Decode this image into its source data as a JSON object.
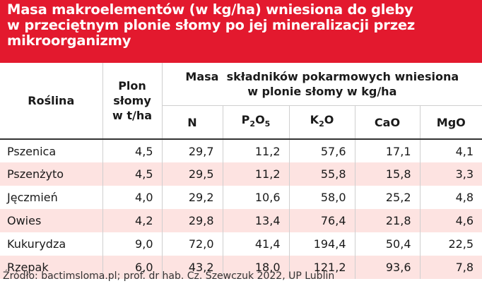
{
  "title_lines": [
    "Masa makroelementów (w kg/ha) wniesiona do gleby",
    "w przeciętnym plonie słomy po jej mineralizacji przez",
    "mikroorganizmy"
  ],
  "headers": {
    "crop": "Roślina",
    "yield_lines": [
      "Plon",
      "słomy",
      "w t/ha"
    ],
    "mass_lines": [
      "Masa  składników pokarmowych wniesiona",
      "w plonie słomy w kg/ha"
    ],
    "n": "N",
    "p2o5": {
      "a": "P",
      "b": "2",
      "c": "O",
      "d": "5"
    },
    "k2o": {
      "a": "K",
      "b": "2",
      "c": "O"
    },
    "cao": "CaO",
    "mgo": "MgO"
  },
  "rows": [
    {
      "crop": "Pszenica",
      "yield": "4,5",
      "n": "29,7",
      "p2o5": "11,2",
      "k2o": "57,6",
      "cao": "17,1",
      "mgo": "4,1"
    },
    {
      "crop": "Pszenżyto",
      "yield": "4,5",
      "n": "29,5",
      "p2o5": "11,2",
      "k2o": "55,8",
      "cao": "15,8",
      "mgo": "3,3"
    },
    {
      "crop": "Jęczmień",
      "yield": "4,0",
      "n": "29,2",
      "p2o5": "10,6",
      "k2o": "58,0",
      "cao": "25,2",
      "mgo": "4,8"
    },
    {
      "crop": "Owies",
      "yield": "4,2",
      "n": "29,8",
      "p2o5": "13,4",
      "k2o": "76,4",
      "cao": "21,8",
      "mgo": "4,6"
    },
    {
      "crop": "Kukurydza",
      "yield": "9,0",
      "n": "72,0",
      "p2o5": "41,4",
      "k2o": "194,4",
      "cao": "50,4",
      "mgo": "22,5"
    },
    {
      "crop": "Rzepak",
      "yield": "6,0",
      "n": "43,2",
      "p2o5": "18,0",
      "k2o": "121,2",
      "cao": "93,6",
      "mgo": "7,8"
    }
  ],
  "source": "Źródło: bactimsloma.pl; prof. dr hab. Cz. Szewczuk 2022, UP Lublin",
  "colors": {
    "header_bg": "#e3192e",
    "stripe": "#fde3e1"
  }
}
